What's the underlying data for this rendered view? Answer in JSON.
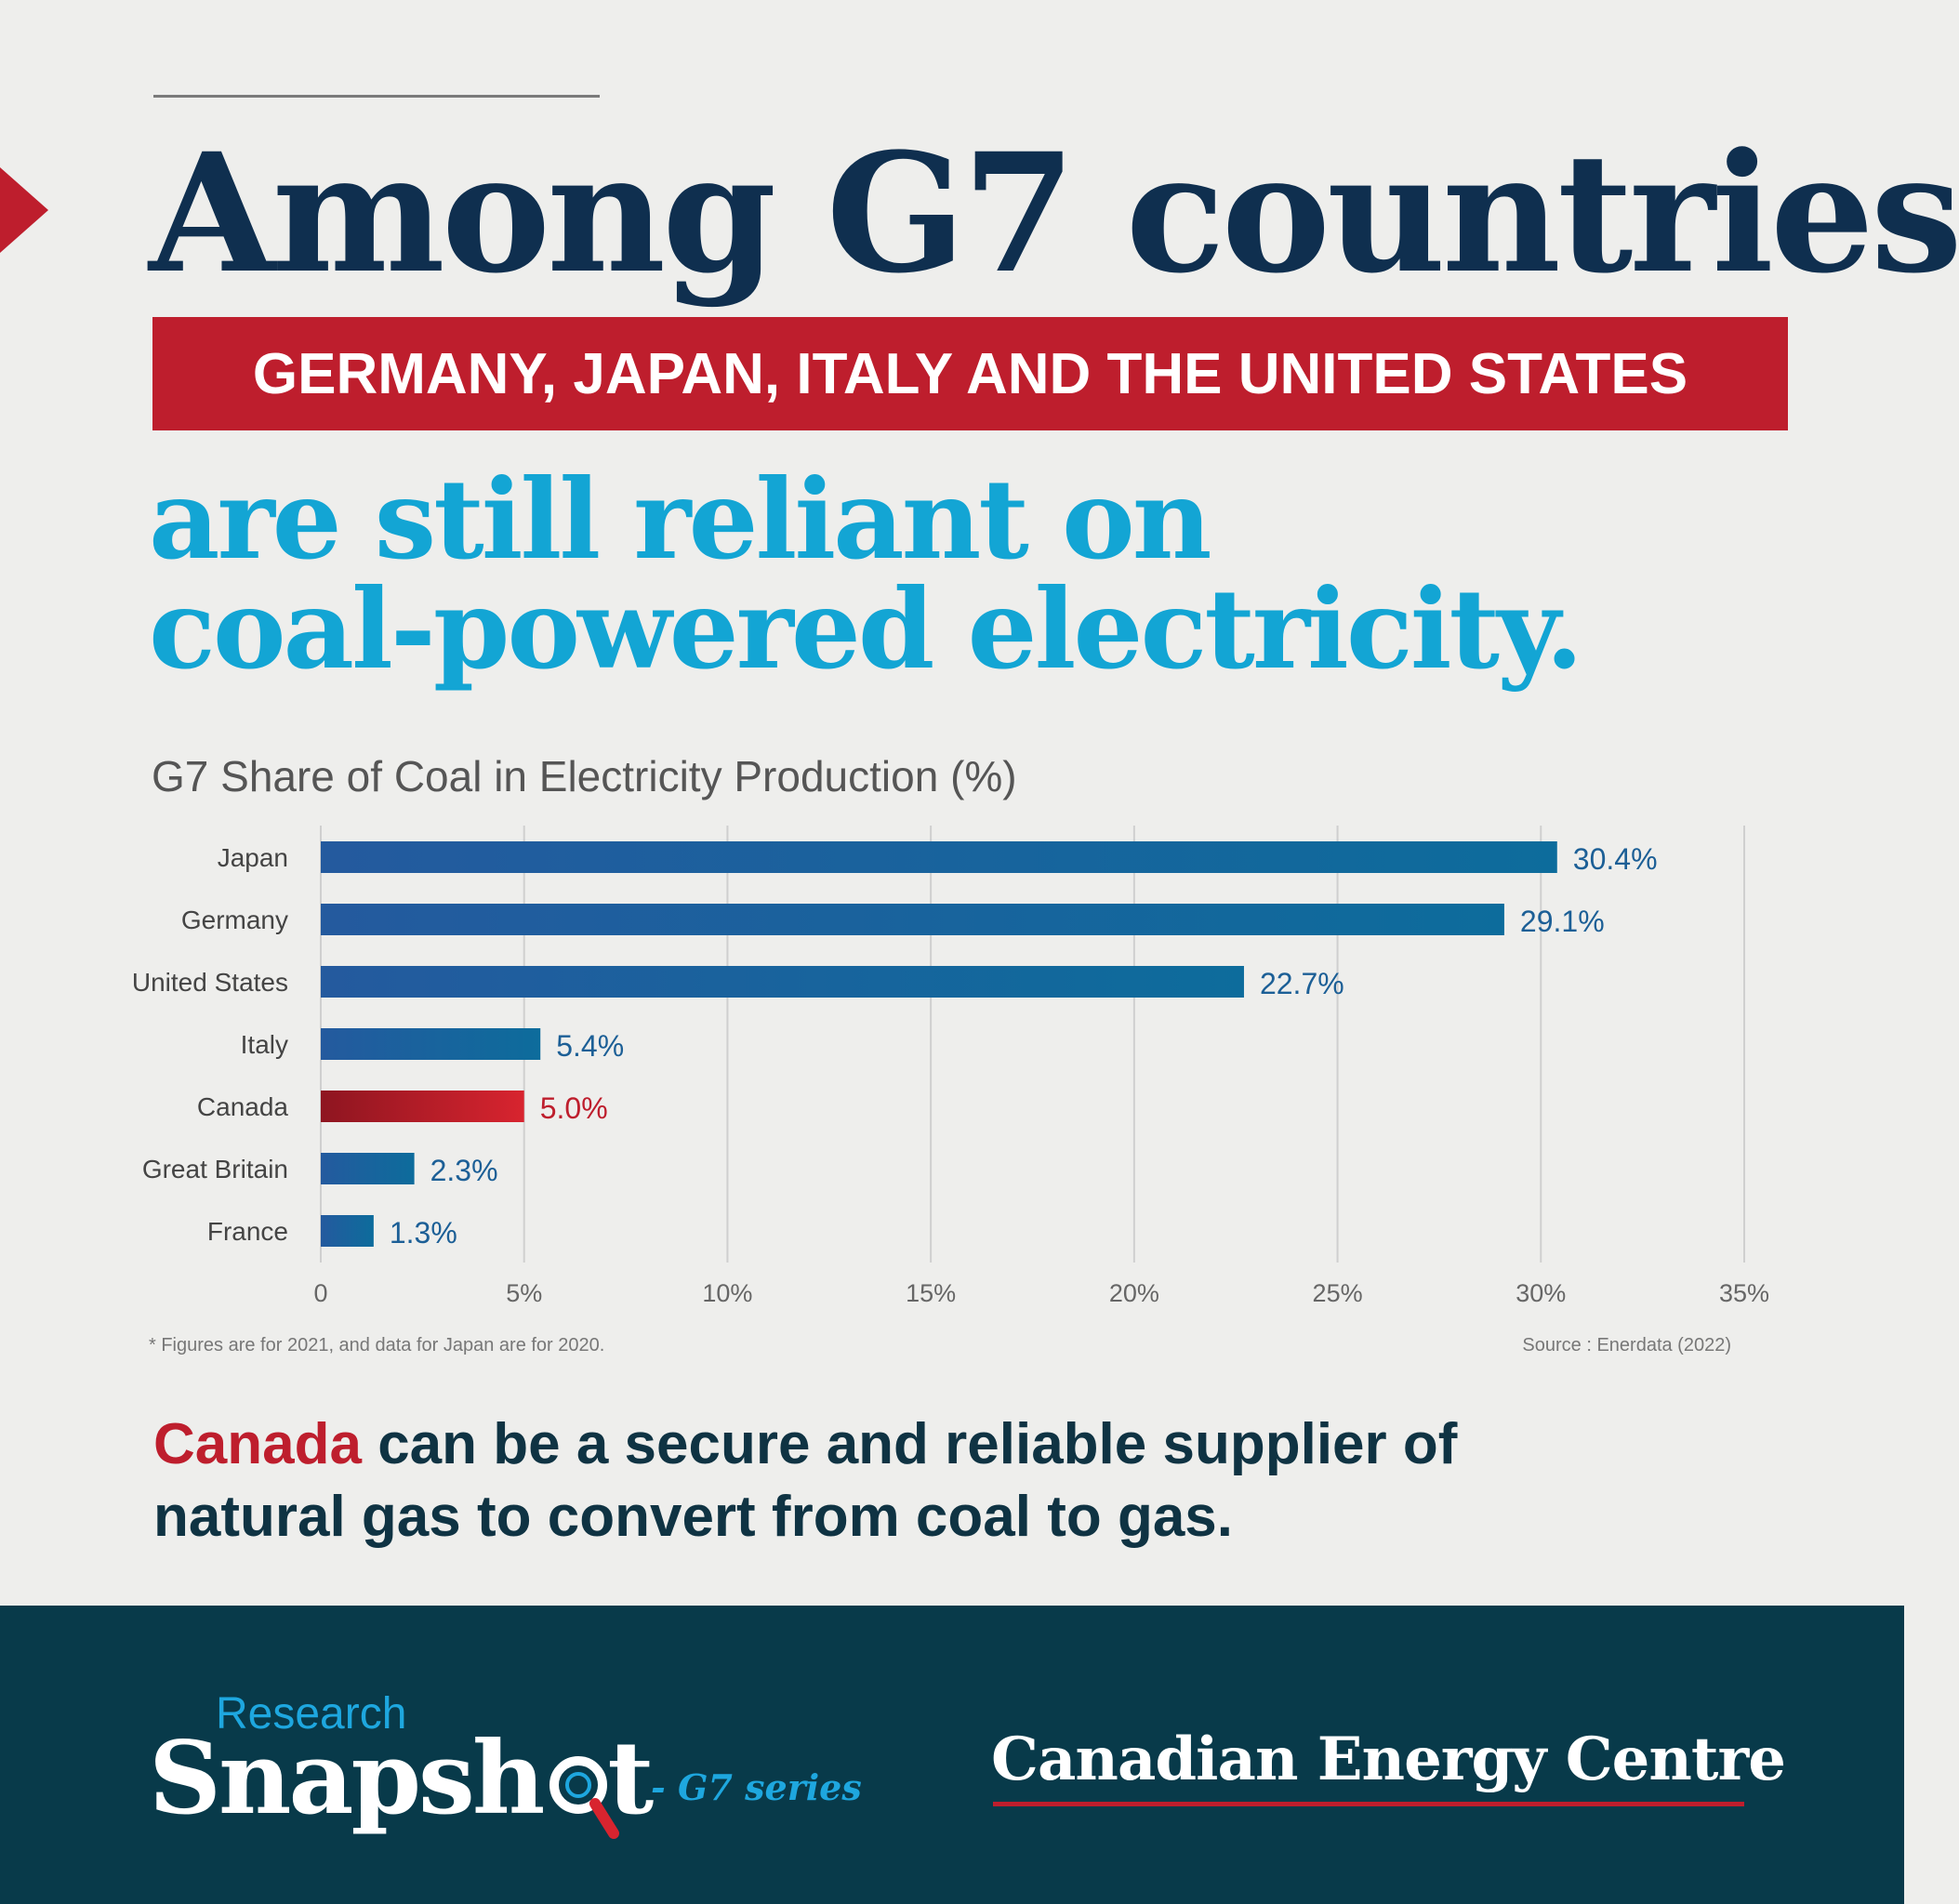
{
  "headline": "Among G7 countries",
  "banner": "GERMANY, JAPAN, ITALY AND THE UNITED STATES",
  "subhead": {
    "line1": "are still reliant on",
    "line2": "coal-powered electricity."
  },
  "chart_data": {
    "type": "bar",
    "orientation": "horizontal",
    "title": "G7 Share of Coal in Electricity Production (%)",
    "xlabel": "",
    "ylabel": "",
    "categories": [
      "Japan",
      "Germany",
      "United States",
      "Italy",
      "Canada",
      "Great Britain",
      "France"
    ],
    "values": [
      30.4,
      29.1,
      22.7,
      5.4,
      5.0,
      2.3,
      1.3
    ],
    "value_labels": [
      "30.4%",
      "29.1%",
      "22.7%",
      "5.4%",
      "5.0%",
      "2.3%",
      "1.3%"
    ],
    "highlight": "Canada",
    "xlim": [
      0,
      35
    ],
    "xticks": [
      0,
      5,
      10,
      15,
      20,
      25,
      30,
      35
    ],
    "xtick_labels": [
      "0",
      "5%",
      "10%",
      "15%",
      "20%",
      "25%",
      "30%",
      "35%"
    ],
    "grid": true,
    "colors": {
      "bar": "#1f5fa0",
      "highlight": "#c4202e",
      "label": "#1c5f96",
      "highlight_label": "#be1e2d"
    }
  },
  "notes": {
    "footnote": "* Figures are for 2021, and data for Japan are for 2020.",
    "source": "Source : Enerdata (2022)"
  },
  "closing": {
    "highlight": "Canada",
    "line1_rest": " can be a secure and reliable supplier of",
    "line2": "natural gas to convert from coal to gas."
  },
  "footer": {
    "research": "Research",
    "snapshot": "Snapsh",
    "snapshot_end": "t",
    "series": "- G7 series",
    "org": "Canadian Energy Centre"
  },
  "colors": {
    "navy": "#0f2f4f",
    "red": "#be1e2d",
    "cyan": "#13a5d4",
    "footer": "#083a4a"
  }
}
